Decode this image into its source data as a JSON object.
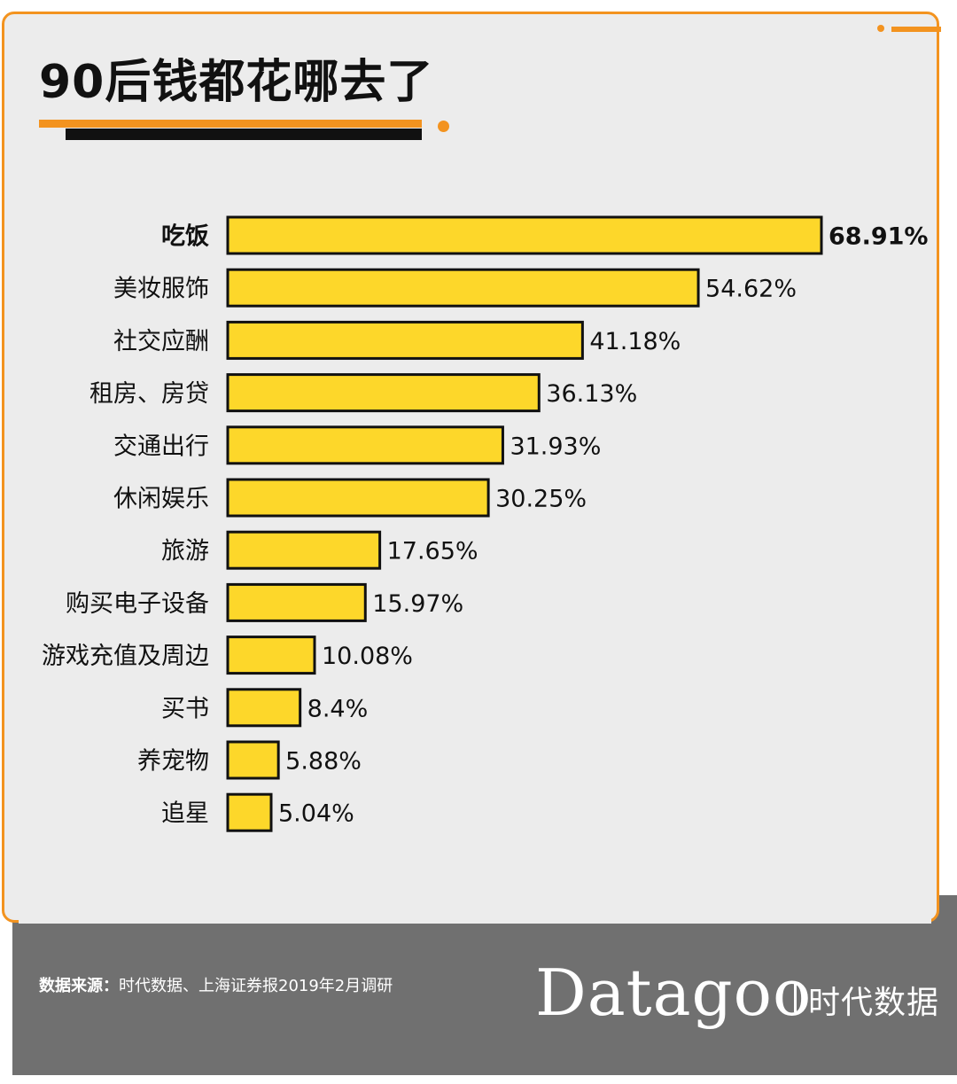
{
  "title": "90后钱都花哪去了",
  "chart_data": {
    "type": "bar",
    "orientation": "horizontal",
    "categories": [
      "吃饭",
      "美妆服饰",
      "社交应酬",
      "租房、房贷",
      "交通出行",
      "休闲娱乐",
      "旅游",
      "购买电子设备",
      "游戏充值及周边",
      "买书",
      "养宠物",
      "追星"
    ],
    "values": [
      68.91,
      54.62,
      41.18,
      36.13,
      31.93,
      30.25,
      17.65,
      15.97,
      10.08,
      8.4,
      5.88,
      5.04
    ],
    "value_labels": [
      "68.91%",
      "54.62%",
      "41.18%",
      "36.13%",
      "31.93%",
      "30.25%",
      "17.65%",
      "15.97%",
      "10.08%",
      "8.4%",
      "5.88%",
      "5.04%"
    ],
    "highlight_index": 0,
    "bar_color": "#fdd72a",
    "bar_outline": "#111111",
    "grid": false
  },
  "source": {
    "label": "数据来源：",
    "text": "时代数据、上海证券报2019年2月调研"
  },
  "brand": {
    "logo": "Datagoo",
    "subtitle": "时代数据"
  },
  "colors": {
    "accent": "#f3931f",
    "card_bg": "#ececec",
    "footer_bg": "#707070"
  }
}
